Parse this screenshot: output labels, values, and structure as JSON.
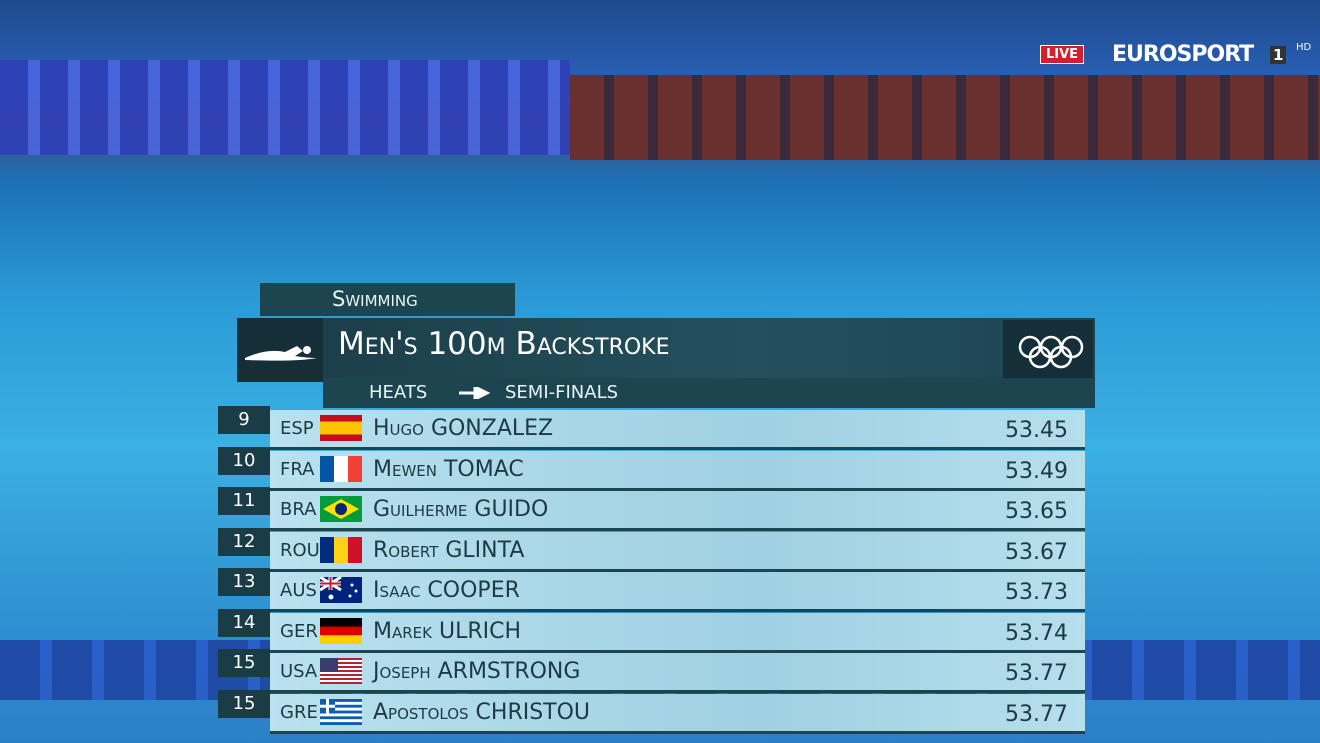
{
  "broadcast": {
    "live": "LIVE",
    "channel": "EUROSPORT",
    "number": "1",
    "quality": "HD"
  },
  "header": {
    "sport": "Swimming",
    "event": "Men's 100m Backstroke",
    "round_from": "HEATS",
    "round_to": "SEMI-FINALS"
  },
  "table": {
    "rows": [
      [
        9,
        "ESP",
        "Hugo GONZALEZ",
        "53.45"
      ],
      [
        10,
        "FRA",
        "Mewen TOMAC",
        "53.49"
      ],
      [
        11,
        "BRA",
        "Guilherme GUIDO",
        "53.65"
      ],
      [
        12,
        "ROU",
        "Robert GLINTA",
        "53.67"
      ],
      [
        13,
        "AUS",
        "Isaac COOPER",
        "53.73"
      ],
      [
        14,
        "GER",
        "Marek ULRICH",
        "53.74"
      ],
      [
        15,
        "USA",
        "Joseph ARMSTRONG",
        "53.77"
      ],
      [
        15,
        "GRE",
        "Apostolos CHRISTOU",
        "53.77"
      ]
    ]
  }
}
